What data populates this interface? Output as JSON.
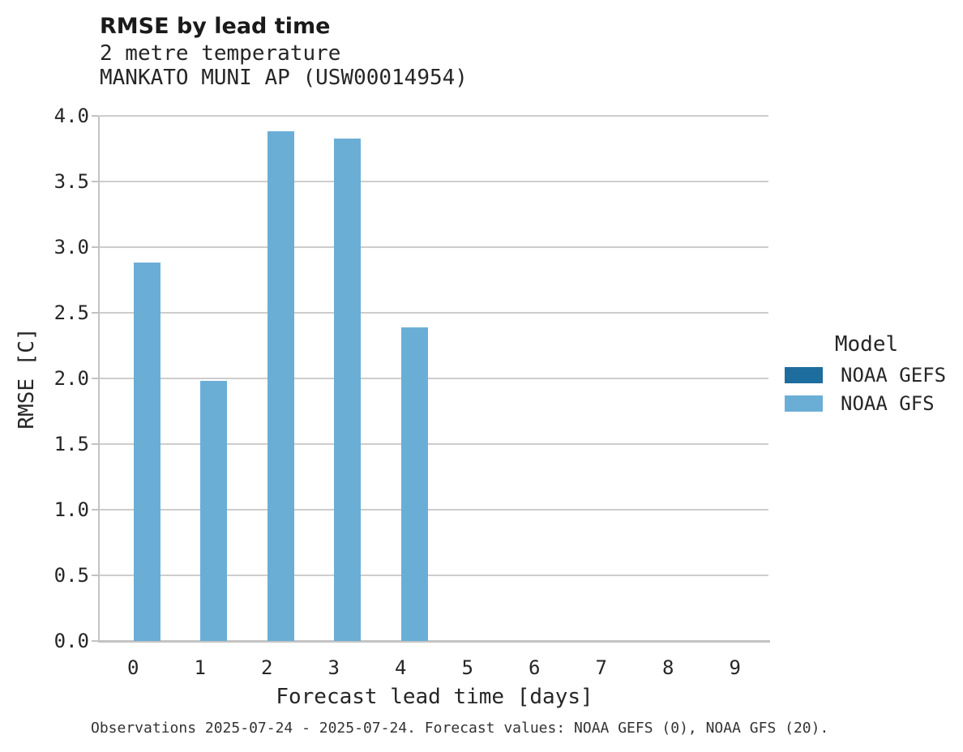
{
  "header": {
    "title": "RMSE by lead time",
    "subtitle_line1": "2 metre temperature",
    "subtitle_line2": "MANKATO MUNI AP (USW00014954)"
  },
  "chart_data": {
    "type": "bar",
    "title": "RMSE by lead time",
    "subtitle": [
      "2 metre temperature",
      "MANKATO MUNI AP (USW00014954)"
    ],
    "xlabel": "Forecast lead time [days]",
    "ylabel": "RMSE [C]",
    "categories": [
      0,
      1,
      2,
      3,
      4,
      5,
      6,
      7,
      8,
      9
    ],
    "xticks": [
      "0",
      "1",
      "2",
      "3",
      "4",
      "5",
      "6",
      "7",
      "8",
      "9"
    ],
    "yticks": [
      "0.0",
      "0.5",
      "1.0",
      "1.5",
      "2.0",
      "2.5",
      "3.0",
      "3.5",
      "4.0"
    ],
    "ylim": [
      0,
      4.0
    ],
    "grid": true,
    "legend_title": "Model",
    "legend_position": "right",
    "series": [
      {
        "name": "NOAA GEFS",
        "color": "#1d6d9e",
        "values": [
          null,
          null,
          null,
          null,
          null,
          null,
          null,
          null,
          null,
          null
        ]
      },
      {
        "name": "NOAA GFS",
        "color": "#6aaed6",
        "values": [
          2.88,
          1.98,
          3.88,
          3.83,
          2.39,
          null,
          null,
          null,
          null,
          null
        ]
      }
    ],
    "caption": "Observations 2025-07-24 - 2025-07-24. Forecast values: NOAA GEFS (0), NOAA GFS (20)."
  },
  "axes": {
    "xlabel": "Forecast lead time [days]",
    "ylabel": "RMSE [C]"
  },
  "legend": {
    "title": "Model",
    "items": [
      {
        "label": "NOAA GEFS",
        "color": "#1d6d9e"
      },
      {
        "label": "NOAA GFS",
        "color": "#6aaed6"
      }
    ]
  },
  "footer": {
    "caption": "Observations 2025-07-24 - 2025-07-24. Forecast values: NOAA GEFS (0), NOAA GFS (20)."
  }
}
